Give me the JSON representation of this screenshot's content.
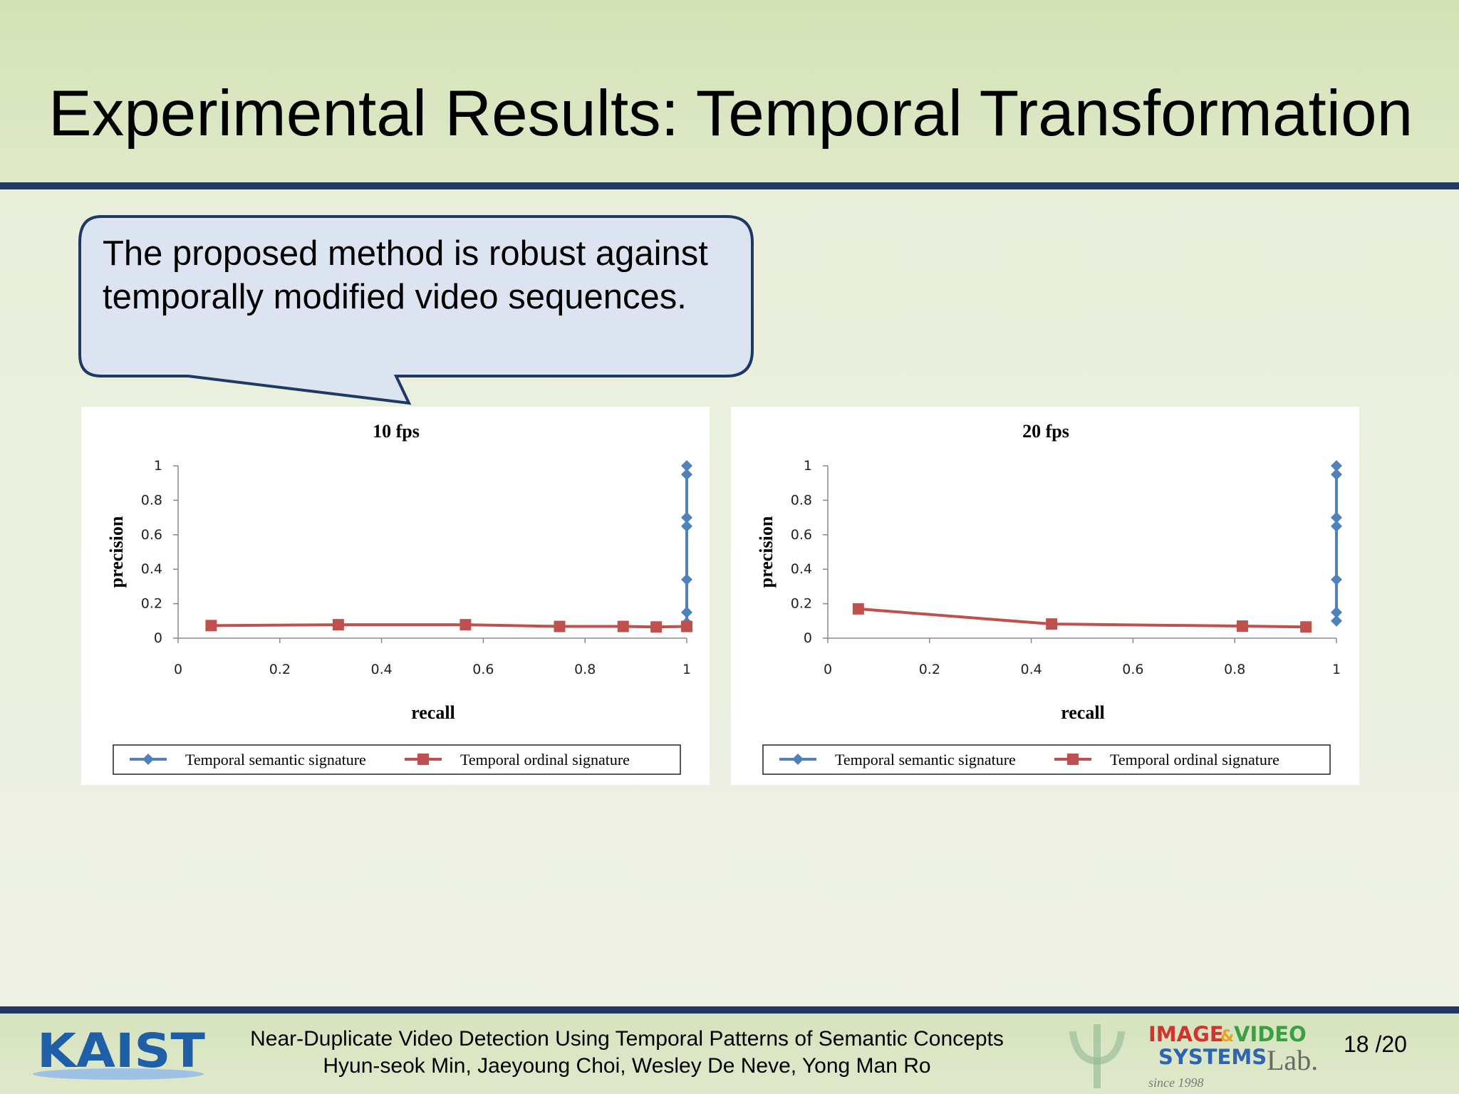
{
  "slide": {
    "title": "Experimental Results: Temporal Transformation",
    "callout_text": "The proposed method is robust against temporally modified video sequences.",
    "footer": {
      "line1": "Near-Duplicate Video Detection Using Temporal Patterns of Semantic Concepts",
      "line2": "Hyun-seok Min, Jaeyoung Choi, Wesley De Neve, Yong Man Ro",
      "page": "18 /20",
      "kaist_logo": "KAIST",
      "lab_logo": {
        "line1a": "IMAGE",
        "line1b": "&",
        "line1c": "VIDEO",
        "line2": "SYSTEMS",
        "lab": "Lab.",
        "since": "since 1998"
      }
    },
    "colors": {
      "header": "#d6e4bb",
      "rule": "#1f3864",
      "callout_fill": "#dce3f1",
      "callout_stroke": "#1f3864",
      "series_semantic": "#4f81bd",
      "series_ordinal": "#c0504d"
    }
  },
  "chart_data": [
    {
      "type": "line",
      "title": "10 fps",
      "xlabel": "recall",
      "ylabel": "precision",
      "xlim": [
        0,
        1
      ],
      "ylim": [
        0,
        1
      ],
      "xticks": [
        "0",
        "0.2",
        "0.4",
        "0.6",
        "0.8",
        "1"
      ],
      "yticks": [
        "0",
        "0.2",
        "0.4",
        "0.6",
        "0.8",
        "1"
      ],
      "legend": "bottom",
      "series": [
        {
          "name": "Temporal semantic signature",
          "marker": "diamond",
          "color": "#4f81bd",
          "x": [
            1,
            1,
            1,
            1,
            1,
            1,
            1,
            1,
            1
          ],
          "y": [
            1.0,
            0.95,
            0.7,
            0.65,
            0.34,
            0.15,
            0.09,
            0.08,
            0.07
          ]
        },
        {
          "name": "Temporal ordinal signature",
          "marker": "square",
          "color": "#c0504d",
          "x": [
            0.065,
            0.315,
            0.565,
            0.75,
            0.875,
            0.94,
            1.0
          ],
          "y": [
            0.073,
            0.078,
            0.078,
            0.068,
            0.068,
            0.065,
            0.068
          ]
        }
      ]
    },
    {
      "type": "line",
      "title": "20 fps",
      "xlabel": "recall",
      "ylabel": "precision",
      "xlim": [
        0,
        1
      ],
      "ylim": [
        0,
        1
      ],
      "xticks": [
        "0",
        "0.2",
        "0.4",
        "0.6",
        "0.8",
        "1"
      ],
      "yticks": [
        "0",
        "0.2",
        "0.4",
        "0.6",
        "0.8",
        "1"
      ],
      "legend": "bottom",
      "series": [
        {
          "name": "Temporal semantic signature",
          "marker": "diamond",
          "color": "#4f81bd",
          "x": [
            1,
            1,
            1,
            1,
            1,
            1,
            1
          ],
          "y": [
            1.0,
            0.95,
            0.7,
            0.65,
            0.34,
            0.15,
            0.1
          ]
        },
        {
          "name": "Temporal ordinal signature",
          "marker": "square",
          "color": "#c0504d",
          "x": [
            0.06,
            0.44,
            0.815,
            0.94
          ],
          "y": [
            0.17,
            0.082,
            0.07,
            0.065
          ]
        }
      ]
    }
  ]
}
